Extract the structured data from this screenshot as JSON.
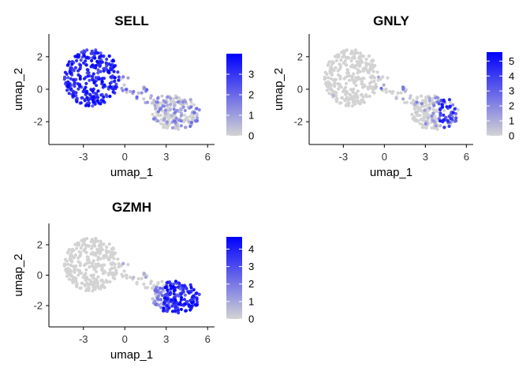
{
  "chart_data": [
    {
      "type": "scatter",
      "title": "SELL",
      "xlabel": "umap_1",
      "ylabel": "umap_2",
      "xlim": [
        -5.5,
        6.5
      ],
      "ylim": [
        -3.4,
        3.4
      ],
      "xticks": [
        -3,
        0,
        3,
        6
      ],
      "yticks": [
        -2,
        0,
        2
      ],
      "color_scale": {
        "low": "#d3d3d3",
        "high": "#0000ff",
        "min": 0,
        "max": 4,
        "ticks": [
          0,
          1,
          2,
          3
        ]
      },
      "legend": "right",
      "grid": false,
      "expression_pattern": "high in left cluster",
      "seed": 101
    },
    {
      "type": "scatter",
      "title": "GNLY",
      "xlabel": "umap_1",
      "ylabel": "umap_2",
      "xlim": [
        -5.5,
        6.5
      ],
      "ylim": [
        -3.4,
        3.4
      ],
      "xticks": [
        -3,
        0,
        3,
        6
      ],
      "yticks": [
        -2,
        0,
        2
      ],
      "color_scale": {
        "low": "#d3d3d3",
        "high": "#0000ff",
        "min": 0,
        "max": 5.6,
        "ticks": [
          0,
          1,
          2,
          3,
          4,
          5
        ]
      },
      "legend": "right",
      "grid": false,
      "expression_pattern": "high in right cluster edge",
      "seed": 202
    },
    {
      "type": "scatter",
      "title": "GZMH",
      "xlabel": "umap_1",
      "ylabel": "umap_2",
      "xlim": [
        -5.5,
        6.5
      ],
      "ylim": [
        -3.4,
        3.4
      ],
      "xticks": [
        -3,
        0,
        3,
        6
      ],
      "yticks": [
        -2,
        0,
        2
      ],
      "color_scale": {
        "low": "#d3d3d3",
        "high": "#0000ff",
        "min": 0,
        "max": 4.7,
        "ticks": [
          0,
          1,
          2,
          3,
          4
        ]
      },
      "legend": "right",
      "grid": false,
      "expression_pattern": "high in right cluster",
      "seed": 303
    }
  ]
}
